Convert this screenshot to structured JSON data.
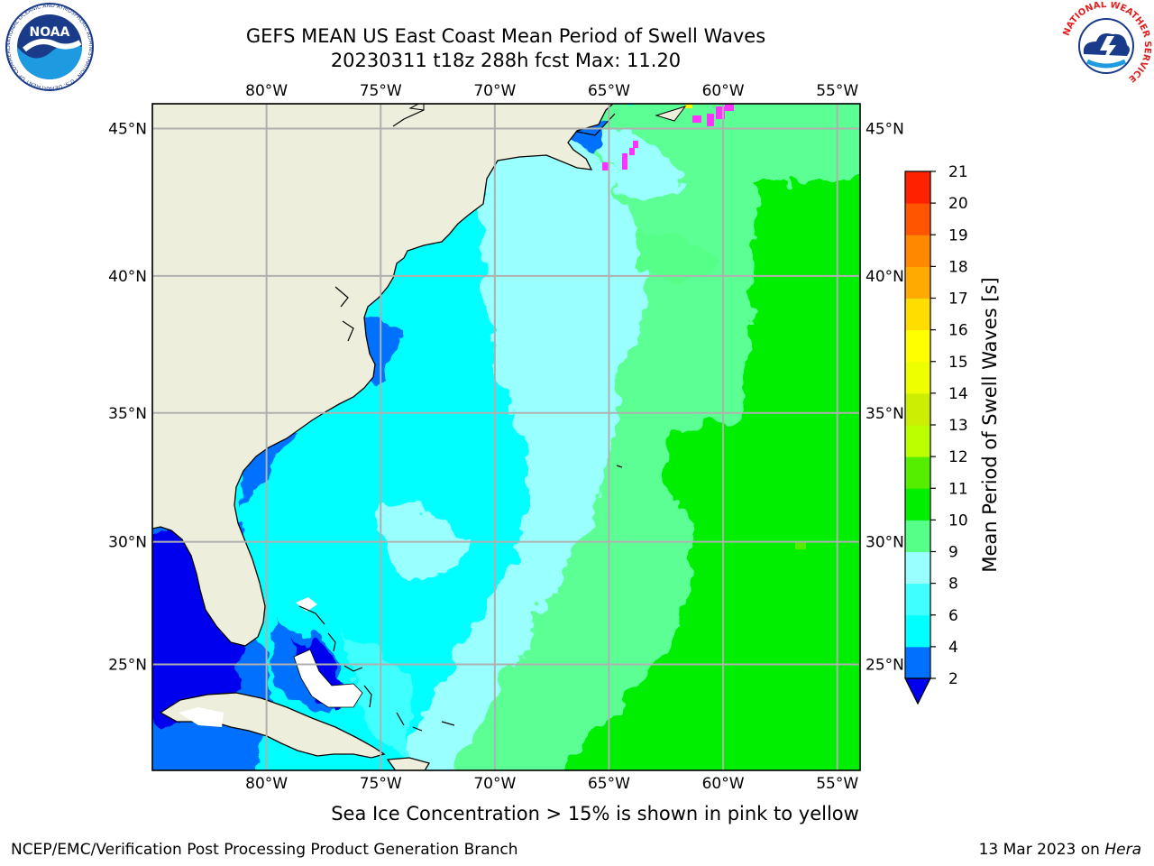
{
  "title": {
    "line1": "GEFS MEAN US East Coast Mean Period of Swell Waves",
    "line2": "20230311 t18z 288h fcst   Max: 11.20"
  },
  "map": {
    "lon_range": [
      -85,
      -54
    ],
    "lat_range": [
      20.5,
      45.8
    ],
    "grid": true,
    "lon_ticks": [
      {
        "value": -80,
        "label": "80°W"
      },
      {
        "value": -75,
        "label": "75°W"
      },
      {
        "value": -70,
        "label": "70°W"
      },
      {
        "value": -65,
        "label": "65°W"
      },
      {
        "value": -60,
        "label": "60°W"
      },
      {
        "value": -55,
        "label": "55°W"
      }
    ],
    "lat_ticks": [
      {
        "value": 45,
        "label": "45°N"
      },
      {
        "value": 40,
        "label": "40°N"
      },
      {
        "value": 35,
        "label": "35°N"
      },
      {
        "value": 30,
        "label": "30°N"
      },
      {
        "value": 25,
        "label": "25°N"
      }
    ],
    "land_color": "#eeeedc",
    "grid_color": "#b0b0b0"
  },
  "colorbar": {
    "label": "Mean Period of Swell Waves [s]",
    "ticks": [
      "2",
      "4",
      "6",
      "8",
      "9",
      "10",
      "11",
      "12",
      "13",
      "14",
      "15",
      "16",
      "17",
      "18",
      "19",
      "20",
      "21"
    ],
    "colors": [
      "#0070ff",
      "#00ffff",
      "#40ffff",
      "#99ffff",
      "#55ff88",
      "#00ee00",
      "#55ee00",
      "#bbff00",
      "#ccee00",
      "#eeff00",
      "#ffff00",
      "#ffdd00",
      "#ffaa00",
      "#ff8800",
      "#ff5500",
      "#ff2200"
    ],
    "under_color": "#0000ee"
  },
  "footer": {
    "note": "Sea Ice Concentration > 15% is shown in pink to yellow",
    "credit_left": "NCEP/EMC/Verification Post Processing Product Generation Branch",
    "credit_date": "13 Mar 2023 on ",
    "credit_host": "Hera"
  },
  "logos": {
    "left": {
      "text": "NOAA",
      "ring_text": "NATIONAL OCEANIC AND ATMOSPHERIC ADMINISTRATION · U.S. DEPARTMENT OF COMMERCE"
    },
    "right": {
      "ring_text": "NATIONAL WEATHER SERVICE"
    }
  }
}
